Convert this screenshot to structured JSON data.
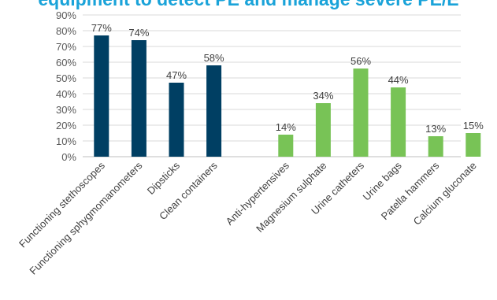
{
  "chart_data": {
    "type": "bar",
    "title": "equipment to detect PE and manage severe PE/E",
    "xlabel": "",
    "ylabel": "",
    "ylim": [
      0,
      90
    ],
    "y_tick_labels": [
      "0%",
      "10%",
      "20%",
      "30%",
      "40%",
      "50%",
      "60%",
      "70%",
      "80%",
      "90%"
    ],
    "y_ticks": [
      0,
      10,
      20,
      30,
      40,
      50,
      60,
      70,
      80,
      90
    ],
    "grid": true,
    "legend": "none",
    "colors": {
      "group1": "#003f63",
      "group2": "#78c356"
    },
    "groups": [
      {
        "categories": [
          "Functioning stethoscopes",
          "Functioning sphygmomanometers",
          "Dipsticks",
          "Clean containers"
        ],
        "values": [
          77,
          74,
          47,
          58
        ],
        "labels": [
          "77%",
          "74%",
          "47%",
          "58%"
        ]
      },
      {
        "categories": [
          "Anti-hypertensives",
          "Magnesium sulphate",
          "Urine catheters",
          "Urine bags",
          "Patella hammers",
          "Calcium gluconate"
        ],
        "values": [
          14,
          34,
          56,
          44,
          13,
          15
        ],
        "labels": [
          "14%",
          "34%",
          "56%",
          "44%",
          "13%",
          "15%"
        ]
      }
    ]
  }
}
